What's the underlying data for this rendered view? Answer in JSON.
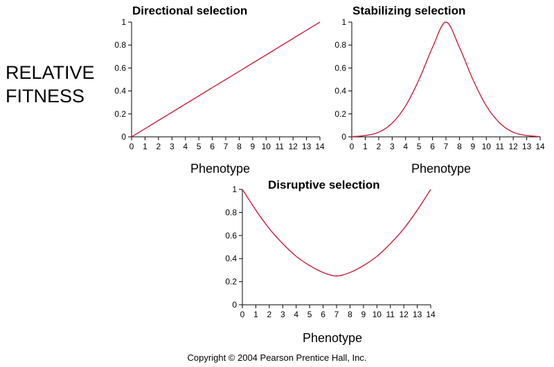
{
  "side_label": {
    "line1": "RELATIVE",
    "line2": "FITNESS"
  },
  "copyright": "Copyright © 2004 Pearson Prentice Hall, Inc.",
  "colors": {
    "curve": "#cc1f3a",
    "axis": "#000000"
  },
  "chart_data": [
    {
      "type": "line",
      "title": "Directional selection",
      "xlabel": "Phenotype",
      "ylabel": "",
      "xlim": [
        0,
        14
      ],
      "ylim": [
        0,
        1
      ],
      "x_ticks": [
        "0",
        "1",
        "2",
        "3",
        "4",
        "5",
        "6",
        "7",
        "8",
        "9",
        "10",
        "11",
        "12",
        "13",
        "14"
      ],
      "y_ticks": [
        "0",
        "0.2",
        "0.4",
        "0.6",
        "0.8",
        "1"
      ],
      "grid": false,
      "series": [
        {
          "x": [
            0,
            1,
            2,
            3,
            4,
            5,
            6,
            7,
            8,
            9,
            10,
            11,
            12,
            13,
            14
          ],
          "y": [
            0,
            0.071,
            0.143,
            0.214,
            0.286,
            0.357,
            0.429,
            0.5,
            0.571,
            0.643,
            0.714,
            0.786,
            0.857,
            0.929,
            1
          ]
        }
      ]
    },
    {
      "type": "line",
      "title": "Stabilizing selection",
      "xlabel": "Phenotype",
      "ylabel": "",
      "xlim": [
        0,
        14
      ],
      "ylim": [
        0,
        1
      ],
      "x_ticks": [
        "0",
        "1",
        "2",
        "3",
        "4",
        "5",
        "6",
        "7",
        "8",
        "9",
        "10",
        "11",
        "12",
        "13",
        "14"
      ],
      "y_ticks": [
        "0",
        "0.2",
        "0.4",
        "0.6",
        "0.8",
        "1"
      ],
      "grid": false,
      "series": [
        {
          "x": [
            0,
            1,
            2,
            3,
            4,
            5,
            6,
            7,
            8,
            9,
            10,
            11,
            12,
            13,
            14
          ],
          "y": [
            0.002,
            0.012,
            0.04,
            0.12,
            0.27,
            0.5,
            0.78,
            1,
            0.78,
            0.5,
            0.27,
            0.12,
            0.04,
            0.012,
            0.002
          ]
        }
      ]
    },
    {
      "type": "line",
      "title": "Disruptive selection",
      "xlabel": "Phenotype",
      "ylabel": "",
      "xlim": [
        0,
        14
      ],
      "ylim": [
        0,
        1
      ],
      "x_ticks": [
        "0",
        "1",
        "2",
        "3",
        "4",
        "5",
        "6",
        "7",
        "8",
        "9",
        "10",
        "11",
        "12",
        "13",
        "14"
      ],
      "y_ticks": [
        "0",
        "0.2",
        "0.4",
        "0.6",
        "0.8",
        "1"
      ],
      "grid": false,
      "series": [
        {
          "x": [
            0,
            1,
            2,
            3,
            4,
            5,
            6,
            7,
            8,
            9,
            10,
            11,
            12,
            13,
            14
          ],
          "y": [
            1,
            0.82,
            0.66,
            0.53,
            0.42,
            0.34,
            0.28,
            0.25,
            0.28,
            0.34,
            0.42,
            0.53,
            0.66,
            0.82,
            1
          ]
        }
      ]
    }
  ]
}
